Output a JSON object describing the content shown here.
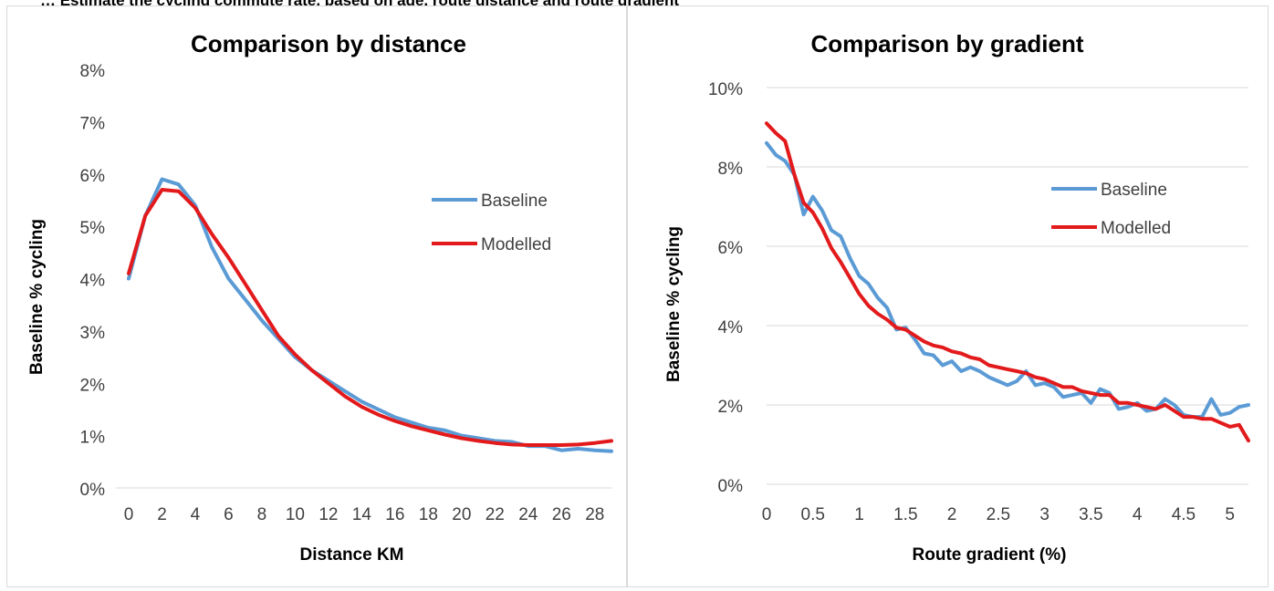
{
  "page": {
    "caption": "… Estimate the cycling commute rate, based on age, route distance and route gradient"
  },
  "chart_data": [
    {
      "type": "line",
      "title": "Comparison  by distance",
      "xlabel": "Distance KM",
      "ylabel": "Baseline % cycling",
      "xlim": [
        0,
        29
      ],
      "ylim": [
        0,
        8
      ],
      "x_ticks": [
        "0",
        "2",
        "4",
        "6",
        "8",
        "10",
        "12",
        "14",
        "16",
        "18",
        "20",
        "22",
        "24",
        "26",
        "28"
      ],
      "y_ticks": [
        "0%",
        "1%",
        "2%",
        "3%",
        "4%",
        "5%",
        "6%",
        "7%",
        "8%"
      ],
      "grid": false,
      "legend": "right",
      "x": [
        0,
        1,
        2,
        3,
        4,
        5,
        6,
        7,
        8,
        9,
        10,
        11,
        12,
        13,
        14,
        15,
        16,
        17,
        18,
        19,
        20,
        21,
        22,
        23,
        24,
        25,
        26,
        27,
        28,
        29
      ],
      "series": [
        {
          "name": "Baseline",
          "color": "#5b9bd5",
          "values": [
            4.0,
            5.2,
            5.9,
            5.8,
            5.4,
            4.6,
            4.0,
            3.6,
            3.2,
            2.85,
            2.5,
            2.25,
            2.05,
            1.85,
            1.65,
            1.5,
            1.35,
            1.25,
            1.15,
            1.1,
            1.0,
            0.95,
            0.9,
            0.88,
            0.8,
            0.8,
            0.72,
            0.75,
            0.72,
            0.7
          ]
        },
        {
          "name": "Modelled",
          "color": "#e31a1c",
          "values": [
            4.1,
            5.2,
            5.7,
            5.67,
            5.35,
            4.85,
            4.4,
            3.9,
            3.4,
            2.9,
            2.55,
            2.25,
            2.0,
            1.75,
            1.55,
            1.4,
            1.28,
            1.18,
            1.1,
            1.02,
            0.95,
            0.9,
            0.86,
            0.83,
            0.82,
            0.82,
            0.82,
            0.83,
            0.86,
            0.9
          ]
        }
      ]
    },
    {
      "type": "line",
      "title": "Comparison  by gradient",
      "xlabel": "Route gradient (%)",
      "ylabel": "Baseline % cycling",
      "xlim": [
        0,
        5.2
      ],
      "ylim": [
        0,
        10
      ],
      "x_ticks": [
        "0",
        "0.5",
        "1",
        "1.5",
        "2",
        "2.5",
        "3",
        "3.5",
        "4",
        "4.5",
        "5"
      ],
      "y_ticks": [
        "0%",
        "2%",
        "4%",
        "6%",
        "8%",
        "10%"
      ],
      "grid": true,
      "legend": "right",
      "x": [
        0,
        0.1,
        0.2,
        0.3,
        0.4,
        0.5,
        0.6,
        0.7,
        0.8,
        0.9,
        1.0,
        1.1,
        1.2,
        1.3,
        1.4,
        1.5,
        1.6,
        1.7,
        1.8,
        1.9,
        2.0,
        2.1,
        2.2,
        2.3,
        2.4,
        2.5,
        2.6,
        2.7,
        2.8,
        2.9,
        3.0,
        3.1,
        3.2,
        3.3,
        3.4,
        3.5,
        3.6,
        3.7,
        3.8,
        3.9,
        4.0,
        4.1,
        4.2,
        4.3,
        4.4,
        4.5,
        4.6,
        4.7,
        4.8,
        4.9,
        5.0,
        5.1,
        5.2
      ],
      "series": [
        {
          "name": "Baseline",
          "color": "#5b9bd5",
          "values": [
            8.6,
            8.3,
            8.15,
            7.8,
            6.8,
            7.25,
            6.9,
            6.4,
            6.25,
            5.7,
            5.25,
            5.05,
            4.7,
            4.45,
            3.9,
            3.95,
            3.65,
            3.3,
            3.25,
            3.0,
            3.1,
            2.85,
            2.95,
            2.85,
            2.7,
            2.6,
            2.5,
            2.6,
            2.85,
            2.5,
            2.55,
            2.45,
            2.2,
            2.25,
            2.3,
            2.05,
            2.4,
            2.3,
            1.9,
            1.95,
            2.05,
            1.85,
            1.9,
            2.15,
            2.0,
            1.75,
            1.7,
            1.7,
            2.15,
            1.75,
            1.8,
            1.95,
            2.0
          ]
        },
        {
          "name": "Modelled",
          "color": "#e31a1c",
          "values": [
            9.1,
            8.85,
            8.65,
            7.8,
            7.1,
            6.85,
            6.45,
            5.95,
            5.6,
            5.2,
            4.8,
            4.5,
            4.3,
            4.15,
            3.95,
            3.9,
            3.75,
            3.6,
            3.5,
            3.45,
            3.35,
            3.3,
            3.2,
            3.15,
            3.0,
            2.95,
            2.9,
            2.85,
            2.8,
            2.7,
            2.65,
            2.55,
            2.45,
            2.45,
            2.35,
            2.3,
            2.25,
            2.25,
            2.05,
            2.05,
            2.0,
            1.95,
            1.9,
            2.0,
            1.85,
            1.7,
            1.7,
            1.65,
            1.65,
            1.55,
            1.45,
            1.5,
            1.1
          ]
        }
      ]
    }
  ]
}
